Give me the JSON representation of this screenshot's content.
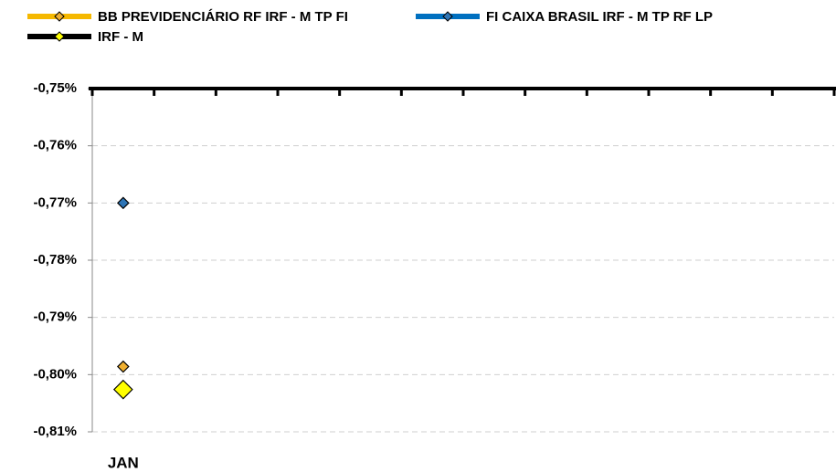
{
  "chart_data": {
    "type": "line",
    "categories": [
      "JAN",
      null,
      null,
      null,
      null,
      null,
      null,
      null,
      null,
      null,
      null,
      null
    ],
    "series": [
      {
        "name": "BB PREVIDENCIÁRIO RF IRF - M TP FI",
        "color": "#f5b800",
        "marker_color": "#f0b030",
        "values": [
          -0.7986,
          null,
          null,
          null,
          null,
          null,
          null,
          null,
          null,
          null,
          null,
          null
        ]
      },
      {
        "name": "FI CAIXA BRASIL IRF - M TP RF LP",
        "color": "#0070c0",
        "marker_color": "#2e75b6",
        "values": [
          -0.77,
          null,
          null,
          null,
          null,
          null,
          null,
          null,
          null,
          null,
          null,
          null
        ]
      },
      {
        "name": "IRF - M",
        "color": "#000000",
        "marker_color": "#ffff00",
        "values": [
          -0.8026,
          null,
          null,
          null,
          null,
          null,
          null,
          null,
          null,
          null,
          null,
          null
        ]
      }
    ],
    "ylim": [
      -0.81,
      -0.75
    ],
    "yticks": [
      {
        "value": -0.75,
        "label": "-0,75%"
      },
      {
        "value": -0.76,
        "label": "-0,76%"
      },
      {
        "value": -0.77,
        "label": "-0,77%"
      },
      {
        "value": -0.78,
        "label": "-0,78%"
      },
      {
        "value": -0.79,
        "label": "-0,79%"
      },
      {
        "value": -0.8,
        "label": "-0,80%"
      },
      {
        "value": -0.81,
        "label": "-0,81%"
      }
    ],
    "grid": true
  }
}
